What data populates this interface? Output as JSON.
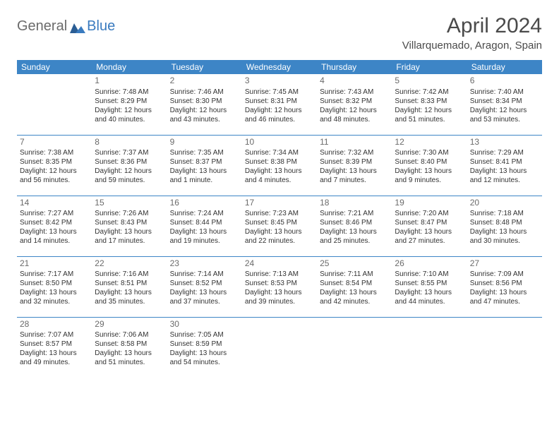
{
  "logo": {
    "general": "General",
    "blue": "Blue"
  },
  "title": "April 2024",
  "location": "Villarquemado, Aragon, Spain",
  "colors": {
    "header_bg": "#3d85c6",
    "header_text": "#ffffff",
    "border": "#3d85c6",
    "logo_gray": "#6b6b6b",
    "logo_blue": "#3a7bbf",
    "text": "#333333",
    "daynum": "#6b6b6b"
  },
  "day_headers": [
    "Sunday",
    "Monday",
    "Tuesday",
    "Wednesday",
    "Thursday",
    "Friday",
    "Saturday"
  ],
  "weeks": [
    [
      null,
      {
        "n": "1",
        "sr": "Sunrise: 7:48 AM",
        "ss": "Sunset: 8:29 PM",
        "dl": "Daylight: 12 hours and 40 minutes."
      },
      {
        "n": "2",
        "sr": "Sunrise: 7:46 AM",
        "ss": "Sunset: 8:30 PM",
        "dl": "Daylight: 12 hours and 43 minutes."
      },
      {
        "n": "3",
        "sr": "Sunrise: 7:45 AM",
        "ss": "Sunset: 8:31 PM",
        "dl": "Daylight: 12 hours and 46 minutes."
      },
      {
        "n": "4",
        "sr": "Sunrise: 7:43 AM",
        "ss": "Sunset: 8:32 PM",
        "dl": "Daylight: 12 hours and 48 minutes."
      },
      {
        "n": "5",
        "sr": "Sunrise: 7:42 AM",
        "ss": "Sunset: 8:33 PM",
        "dl": "Daylight: 12 hours and 51 minutes."
      },
      {
        "n": "6",
        "sr": "Sunrise: 7:40 AM",
        "ss": "Sunset: 8:34 PM",
        "dl": "Daylight: 12 hours and 53 minutes."
      }
    ],
    [
      {
        "n": "7",
        "sr": "Sunrise: 7:38 AM",
        "ss": "Sunset: 8:35 PM",
        "dl": "Daylight: 12 hours and 56 minutes."
      },
      {
        "n": "8",
        "sr": "Sunrise: 7:37 AM",
        "ss": "Sunset: 8:36 PM",
        "dl": "Daylight: 12 hours and 59 minutes."
      },
      {
        "n": "9",
        "sr": "Sunrise: 7:35 AM",
        "ss": "Sunset: 8:37 PM",
        "dl": "Daylight: 13 hours and 1 minute."
      },
      {
        "n": "10",
        "sr": "Sunrise: 7:34 AM",
        "ss": "Sunset: 8:38 PM",
        "dl": "Daylight: 13 hours and 4 minutes."
      },
      {
        "n": "11",
        "sr": "Sunrise: 7:32 AM",
        "ss": "Sunset: 8:39 PM",
        "dl": "Daylight: 13 hours and 7 minutes."
      },
      {
        "n": "12",
        "sr": "Sunrise: 7:30 AM",
        "ss": "Sunset: 8:40 PM",
        "dl": "Daylight: 13 hours and 9 minutes."
      },
      {
        "n": "13",
        "sr": "Sunrise: 7:29 AM",
        "ss": "Sunset: 8:41 PM",
        "dl": "Daylight: 13 hours and 12 minutes."
      }
    ],
    [
      {
        "n": "14",
        "sr": "Sunrise: 7:27 AM",
        "ss": "Sunset: 8:42 PM",
        "dl": "Daylight: 13 hours and 14 minutes."
      },
      {
        "n": "15",
        "sr": "Sunrise: 7:26 AM",
        "ss": "Sunset: 8:43 PM",
        "dl": "Daylight: 13 hours and 17 minutes."
      },
      {
        "n": "16",
        "sr": "Sunrise: 7:24 AM",
        "ss": "Sunset: 8:44 PM",
        "dl": "Daylight: 13 hours and 19 minutes."
      },
      {
        "n": "17",
        "sr": "Sunrise: 7:23 AM",
        "ss": "Sunset: 8:45 PM",
        "dl": "Daylight: 13 hours and 22 minutes."
      },
      {
        "n": "18",
        "sr": "Sunrise: 7:21 AM",
        "ss": "Sunset: 8:46 PM",
        "dl": "Daylight: 13 hours and 25 minutes."
      },
      {
        "n": "19",
        "sr": "Sunrise: 7:20 AM",
        "ss": "Sunset: 8:47 PM",
        "dl": "Daylight: 13 hours and 27 minutes."
      },
      {
        "n": "20",
        "sr": "Sunrise: 7:18 AM",
        "ss": "Sunset: 8:48 PM",
        "dl": "Daylight: 13 hours and 30 minutes."
      }
    ],
    [
      {
        "n": "21",
        "sr": "Sunrise: 7:17 AM",
        "ss": "Sunset: 8:50 PM",
        "dl": "Daylight: 13 hours and 32 minutes."
      },
      {
        "n": "22",
        "sr": "Sunrise: 7:16 AM",
        "ss": "Sunset: 8:51 PM",
        "dl": "Daylight: 13 hours and 35 minutes."
      },
      {
        "n": "23",
        "sr": "Sunrise: 7:14 AM",
        "ss": "Sunset: 8:52 PM",
        "dl": "Daylight: 13 hours and 37 minutes."
      },
      {
        "n": "24",
        "sr": "Sunrise: 7:13 AM",
        "ss": "Sunset: 8:53 PM",
        "dl": "Daylight: 13 hours and 39 minutes."
      },
      {
        "n": "25",
        "sr": "Sunrise: 7:11 AM",
        "ss": "Sunset: 8:54 PM",
        "dl": "Daylight: 13 hours and 42 minutes."
      },
      {
        "n": "26",
        "sr": "Sunrise: 7:10 AM",
        "ss": "Sunset: 8:55 PM",
        "dl": "Daylight: 13 hours and 44 minutes."
      },
      {
        "n": "27",
        "sr": "Sunrise: 7:09 AM",
        "ss": "Sunset: 8:56 PM",
        "dl": "Daylight: 13 hours and 47 minutes."
      }
    ],
    [
      {
        "n": "28",
        "sr": "Sunrise: 7:07 AM",
        "ss": "Sunset: 8:57 PM",
        "dl": "Daylight: 13 hours and 49 minutes."
      },
      {
        "n": "29",
        "sr": "Sunrise: 7:06 AM",
        "ss": "Sunset: 8:58 PM",
        "dl": "Daylight: 13 hours and 51 minutes."
      },
      {
        "n": "30",
        "sr": "Sunrise: 7:05 AM",
        "ss": "Sunset: 8:59 PM",
        "dl": "Daylight: 13 hours and 54 minutes."
      },
      null,
      null,
      null,
      null
    ]
  ]
}
